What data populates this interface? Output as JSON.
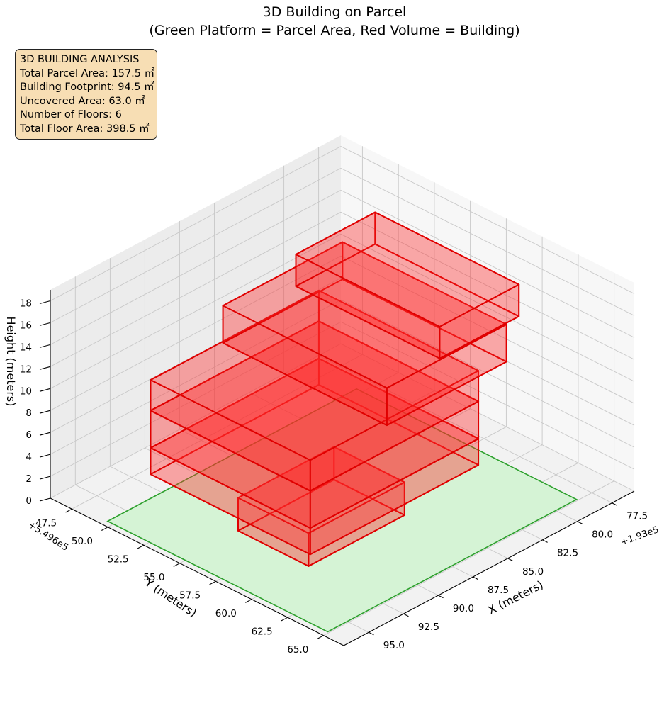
{
  "chart_data": {
    "type": "3d-polygons",
    "title": "3D Building on Parcel",
    "subtitle": "(Green Platform = Parcel Area, Red Volume = Building)",
    "xlabel": "X (meters)",
    "ylabel": "Y (meters)",
    "zlabel": "Height (meters)",
    "x_offset_label": "+1.93e5",
    "y_offset_label": "+5.496e5",
    "x_ticks": [
      "77.5",
      "80.0",
      "82.5",
      "85.0",
      "87.5",
      "90.0",
      "92.5",
      "95.0"
    ],
    "y_ticks": [
      "47.5",
      "50.0",
      "52.5",
      "55.0",
      "57.5",
      "60.0",
      "62.5",
      "65.0"
    ],
    "z_ticks": [
      "0",
      "2",
      "4",
      "6",
      "8",
      "10",
      "12",
      "14",
      "16",
      "18"
    ],
    "xlim": [
      75.9,
      96.8
    ],
    "ylim": [
      46.0,
      66.4
    ],
    "zlim": [
      0,
      19
    ],
    "grid": true,
    "colors": {
      "parcel": "#2ca02c",
      "parcel_fill": "#d5f3d5",
      "building": "#e00000",
      "building_fill": "#ff2a2a",
      "info_bg": "#f7deb4"
    },
    "parcel": {
      "x": [
        78.5,
        96.4
      ],
      "y": [
        49.6,
        64.9
      ],
      "z": 0
    },
    "building_blocks": [
      {
        "floor": 1,
        "x": [
          85.6,
          92.5
        ],
        "y": [
          54.9,
          59.8
        ],
        "z": [
          0,
          3.0
        ]
      },
      {
        "floor": 2,
        "x": [
          80.9,
          93.0
        ],
        "y": [
          49.3,
          60.4
        ],
        "z": [
          1.8,
          4.2
        ]
      },
      {
        "floor": 3,
        "x": [
          80.9,
          93.0
        ],
        "y": [
          49.3,
          60.4
        ],
        "z": [
          4.2,
          7.6
        ]
      },
      {
        "floor": 4,
        "x": [
          80.9,
          93.0
        ],
        "y": [
          49.3,
          60.4
        ],
        "z": [
          7.6,
          10.4
        ]
      },
      {
        "floor": 5,
        "x": [
          79.3,
          87.9
        ],
        "y": [
          49.4,
          60.8
        ],
        "z": [
          10.4,
          13.8
        ]
      },
      {
        "floor": 6,
        "x": [
          78.3,
          84.0
        ],
        "y": [
          50.7,
          60.7
        ],
        "z": [
          13.8,
          16.7
        ]
      }
    ]
  },
  "info_box": {
    "lines": [
      "3D BUILDING ANALYSIS",
      "Total Parcel Area: 157.5 ㎡",
      "Building Footprint: 94.5 ㎡",
      "Uncovered Area: 63.0 ㎡",
      "Number of Floors: 6",
      "Total Floor Area: 398.5 ㎡"
    ]
  }
}
